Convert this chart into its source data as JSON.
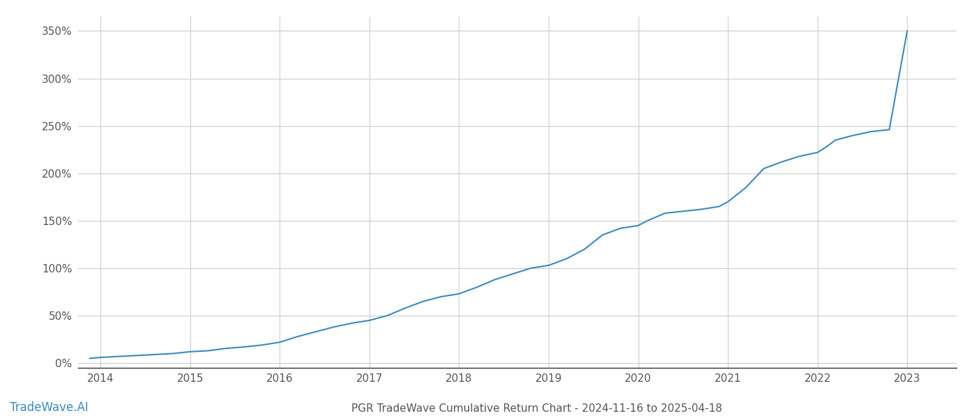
{
  "title": "PGR TradeWave Cumulative Return Chart - 2024-11-16 to 2025-04-18",
  "watermark": "TradeWave.AI",
  "line_color": "#3a8abf",
  "background_color": "#ffffff",
  "grid_color": "#cccccc",
  "ylabel": "",
  "xlabel": "",
  "xlim": [
    2013.75,
    2023.55
  ],
  "ylim": [
    -0.05,
    3.65
  ],
  "yticks": [
    0.0,
    0.5,
    1.0,
    1.5,
    2.0,
    2.5,
    3.0,
    3.5
  ],
  "ytick_labels": [
    "0%",
    "50%",
    "100%",
    "150%",
    "200%",
    "250%",
    "300%",
    "350%"
  ],
  "xticks": [
    2014,
    2015,
    2016,
    2017,
    2018,
    2019,
    2020,
    2021,
    2022,
    2023
  ],
  "years": [
    2013.88,
    2014.0,
    2014.1,
    2014.2,
    2014.4,
    2014.6,
    2014.8,
    2015.0,
    2015.2,
    2015.4,
    2015.6,
    2015.8,
    2016.0,
    2016.2,
    2016.4,
    2016.6,
    2016.8,
    2017.0,
    2017.2,
    2017.4,
    2017.6,
    2017.8,
    2018.0,
    2018.2,
    2018.4,
    2018.6,
    2018.8,
    2019.0,
    2019.2,
    2019.4,
    2019.6,
    2019.8,
    2020.0,
    2020.1,
    2020.3,
    2020.5,
    2020.7,
    2020.9,
    2021.0,
    2021.2,
    2021.4,
    2021.6,
    2021.8,
    2022.0,
    2022.1,
    2022.2,
    2022.4,
    2022.6,
    2022.8,
    2023.0
  ],
  "values": [
    0.05,
    0.06,
    0.065,
    0.07,
    0.08,
    0.09,
    0.1,
    0.12,
    0.13,
    0.155,
    0.17,
    0.19,
    0.22,
    0.28,
    0.33,
    0.38,
    0.42,
    0.45,
    0.5,
    0.58,
    0.65,
    0.7,
    0.73,
    0.8,
    0.88,
    0.94,
    1.0,
    1.03,
    1.1,
    1.2,
    1.35,
    1.42,
    1.45,
    1.5,
    1.58,
    1.6,
    1.62,
    1.65,
    1.7,
    1.85,
    2.05,
    2.12,
    2.18,
    2.22,
    2.28,
    2.35,
    2.4,
    2.44,
    2.46,
    3.5
  ],
  "title_fontsize": 11,
  "tick_fontsize": 11,
  "watermark_fontsize": 12,
  "line_width": 1.5
}
